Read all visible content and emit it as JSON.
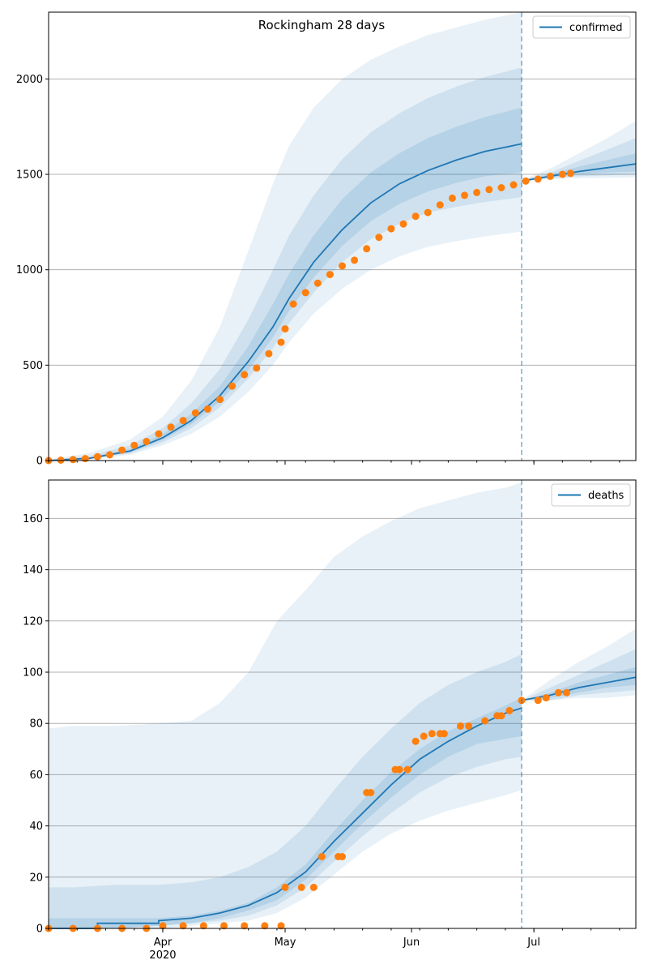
{
  "figure": {
    "title": "Rockingham 28 days"
  },
  "colors": {
    "model_line": "#1f77b4",
    "observed_points": "#ff7f0e",
    "band_fill": "#1f77b4",
    "grid": "#b0b0b0",
    "forecast_line": "#1f77b4"
  },
  "chart_data": [
    {
      "type": "line",
      "name": "confirmed",
      "legend": {
        "label": "confirmed",
        "placement": "top-right"
      },
      "grid": "y-only",
      "ylim": [
        0,
        2350
      ],
      "yticks": [
        0,
        500,
        1000,
        1500,
        2000
      ],
      "xlim": [
        "2020-03-04",
        "2020-07-26"
      ],
      "forecast_start": "2020-06-28",
      "model_median": {
        "x": [
          "2020-03-04",
          "2020-03-14",
          "2020-03-24",
          "2020-04-01",
          "2020-04-08",
          "2020-04-15",
          "2020-04-22",
          "2020-04-28",
          "2020-05-02",
          "2020-05-08",
          "2020-05-15",
          "2020-05-22",
          "2020-05-29",
          "2020-06-05",
          "2020-06-12",
          "2020-06-19",
          "2020-06-28"
        ],
        "y": [
          0,
          12,
          50,
          120,
          210,
          340,
          520,
          700,
          850,
          1040,
          1210,
          1350,
          1450,
          1520,
          1575,
          1620,
          1660
        ]
      },
      "bands": [
        {
          "level": "outer",
          "x": [
            "2020-03-04",
            "2020-03-14",
            "2020-03-24",
            "2020-04-01",
            "2020-04-08",
            "2020-04-15",
            "2020-04-22",
            "2020-04-28",
            "2020-05-02",
            "2020-05-08",
            "2020-05-15",
            "2020-05-22",
            "2020-05-29",
            "2020-06-05",
            "2020-06-12",
            "2020-06-19",
            "2020-06-28"
          ],
          "lower": [
            0,
            5,
            30,
            80,
            140,
            230,
            360,
            500,
            620,
            770,
            900,
            1000,
            1070,
            1120,
            1150,
            1175,
            1200
          ],
          "upper": [
            5,
            40,
            110,
            230,
            420,
            700,
            1100,
            1450,
            1650,
            1850,
            2000,
            2100,
            2170,
            2230,
            2270,
            2310,
            2350
          ]
        },
        {
          "level": "middle",
          "x": [
            "2020-03-04",
            "2020-03-14",
            "2020-03-24",
            "2020-04-01",
            "2020-04-08",
            "2020-04-15",
            "2020-04-22",
            "2020-04-28",
            "2020-05-02",
            "2020-05-08",
            "2020-05-15",
            "2020-05-22",
            "2020-05-29",
            "2020-06-05",
            "2020-06-12",
            "2020-06-19",
            "2020-06-28"
          ],
          "lower": [
            0,
            8,
            38,
            95,
            170,
            280,
            430,
            590,
            720,
            880,
            1040,
            1160,
            1240,
            1300,
            1330,
            1355,
            1380
          ],
          "upper": [
            3,
            25,
            80,
            170,
            300,
            480,
            740,
            1000,
            1180,
            1390,
            1580,
            1720,
            1820,
            1900,
            1960,
            2010,
            2060
          ]
        },
        {
          "level": "inner",
          "x": [
            "2020-03-04",
            "2020-03-14",
            "2020-03-24",
            "2020-04-01",
            "2020-04-08",
            "2020-04-15",
            "2020-04-22",
            "2020-04-28",
            "2020-05-02",
            "2020-05-08",
            "2020-05-15",
            "2020-05-22",
            "2020-05-29",
            "2020-06-05",
            "2020-06-12",
            "2020-06-19",
            "2020-06-28"
          ],
          "lower": [
            0,
            10,
            44,
            108,
            190,
            310,
            475,
            645,
            785,
            960,
            1125,
            1255,
            1345,
            1410,
            1455,
            1490,
            1510
          ],
          "upper": [
            2,
            16,
            62,
            140,
            245,
            390,
            600,
            820,
            980,
            1180,
            1370,
            1510,
            1610,
            1690,
            1750,
            1800,
            1850
          ]
        }
      ],
      "forecast_median": {
        "x": [
          "2020-06-28",
          "2020-07-05",
          "2020-07-12",
          "2020-07-19",
          "2020-07-26"
        ],
        "y": [
          1465,
          1490,
          1515,
          1535,
          1555
        ]
      },
      "forecast_bands": [
        {
          "level": "outer",
          "x": [
            "2020-06-28",
            "2020-07-05",
            "2020-07-12",
            "2020-07-19",
            "2020-07-26"
          ],
          "lower": [
            1465,
            1475,
            1480,
            1482,
            1485
          ],
          "upper": [
            1470,
            1530,
            1610,
            1690,
            1780
          ]
        },
        {
          "level": "middle",
          "x": [
            "2020-06-28",
            "2020-07-05",
            "2020-07-12",
            "2020-07-19",
            "2020-07-26"
          ],
          "lower": [
            1465,
            1480,
            1490,
            1495,
            1500
          ],
          "upper": [
            1468,
            1510,
            1570,
            1630,
            1690
          ]
        },
        {
          "level": "inner",
          "x": [
            "2020-06-28",
            "2020-07-05",
            "2020-07-12",
            "2020-07-19",
            "2020-07-26"
          ],
          "lower": [
            1465,
            1485,
            1500,
            1510,
            1515
          ],
          "upper": [
            1467,
            1500,
            1540,
            1575,
            1610
          ]
        }
      ],
      "observed": {
        "x": [
          "2020-03-04",
          "2020-03-07",
          "2020-03-10",
          "2020-03-13",
          "2020-03-16",
          "2020-03-19",
          "2020-03-22",
          "2020-03-25",
          "2020-03-28",
          "2020-03-31",
          "2020-04-03",
          "2020-04-06",
          "2020-04-09",
          "2020-04-12",
          "2020-04-15",
          "2020-04-18",
          "2020-04-21",
          "2020-04-24",
          "2020-04-27",
          "2020-04-30",
          "2020-05-01",
          "2020-05-03",
          "2020-05-06",
          "2020-05-09",
          "2020-05-12",
          "2020-05-15",
          "2020-05-18",
          "2020-05-21",
          "2020-05-24",
          "2020-05-27",
          "2020-05-30",
          "2020-06-02",
          "2020-06-05",
          "2020-06-08",
          "2020-06-11",
          "2020-06-14",
          "2020-06-17",
          "2020-06-20",
          "2020-06-23",
          "2020-06-26",
          "2020-06-29",
          "2020-07-02",
          "2020-07-05",
          "2020-07-08",
          "2020-07-10"
        ],
        "y": [
          0,
          2,
          5,
          10,
          20,
          30,
          55,
          80,
          100,
          140,
          175,
          210,
          250,
          270,
          320,
          390,
          450,
          485,
          560,
          620,
          690,
          820,
          880,
          930,
          975,
          1020,
          1050,
          1110,
          1170,
          1215,
          1240,
          1280,
          1300,
          1340,
          1375,
          1390,
          1405,
          1420,
          1430,
          1445,
          1465,
          1475,
          1490,
          1500,
          1505
        ]
      }
    },
    {
      "type": "line",
      "name": "deaths",
      "legend": {
        "label": "deaths",
        "placement": "top-right"
      },
      "grid": "y-only",
      "ylim": [
        0,
        175
      ],
      "yticks": [
        0,
        20,
        40,
        60,
        80,
        100,
        120,
        140,
        160
      ],
      "xlim": [
        "2020-03-04",
        "2020-07-26"
      ],
      "xtick_labels": [
        {
          "date": "2020-04-01",
          "label": "Apr",
          "sublabel": "2020"
        },
        {
          "date": "2020-05-01",
          "label": "May",
          "sublabel": ""
        },
        {
          "date": "2020-06-01",
          "label": "Jun",
          "sublabel": ""
        },
        {
          "date": "2020-07-01",
          "label": "Jul",
          "sublabel": ""
        }
      ],
      "forecast_start": "2020-06-28",
      "model_median": {
        "x": [
          "2020-03-04",
          "2020-03-16",
          "2020-03-16",
          "2020-03-31",
          "2020-03-31",
          "2020-04-08",
          "2020-04-15",
          "2020-04-22",
          "2020-04-29",
          "2020-05-06",
          "2020-05-13",
          "2020-05-20",
          "2020-05-27",
          "2020-06-03",
          "2020-06-10",
          "2020-06-17",
          "2020-06-24",
          "2020-06-28"
        ],
        "y": [
          0,
          0,
          2,
          2,
          3,
          4,
          6,
          9,
          14,
          22,
          34,
          45,
          56,
          66,
          73,
          79,
          84,
          86
        ]
      },
      "bands": [
        {
          "level": "outer",
          "x": [
            "2020-03-04",
            "2020-03-10",
            "2020-03-20",
            "2020-03-31",
            "2020-04-08",
            "2020-04-15",
            "2020-04-22",
            "2020-04-29",
            "2020-05-06",
            "2020-05-13",
            "2020-05-20",
            "2020-05-27",
            "2020-06-03",
            "2020-06-10",
            "2020-06-17",
            "2020-06-24",
            "2020-06-28"
          ],
          "lower": [
            0,
            0,
            0,
            0,
            1,
            2,
            3,
            6,
            12,
            21,
            30,
            37,
            42,
            46,
            49,
            52,
            54
          ],
          "upper": [
            78,
            79,
            79,
            80,
            81,
            88,
            100,
            120,
            132,
            145,
            153,
            159,
            164,
            167,
            170,
            172,
            174
          ]
        },
        {
          "level": "middle",
          "x": [
            "2020-03-04",
            "2020-03-10",
            "2020-03-20",
            "2020-03-31",
            "2020-04-08",
            "2020-04-15",
            "2020-04-22",
            "2020-04-29",
            "2020-05-06",
            "2020-05-13",
            "2020-05-20",
            "2020-05-27",
            "2020-06-03",
            "2020-06-10",
            "2020-06-17",
            "2020-06-24",
            "2020-06-28"
          ],
          "lower": [
            0,
            0,
            0,
            1,
            2,
            3,
            5,
            9,
            16,
            26,
            36,
            45,
            53,
            59,
            63,
            66,
            67
          ],
          "upper": [
            16,
            16,
            17,
            17,
            18,
            20,
            24,
            30,
            40,
            54,
            67,
            78,
            88,
            95,
            100,
            104,
            107
          ]
        },
        {
          "level": "inner",
          "x": [
            "2020-03-04",
            "2020-03-10",
            "2020-03-20",
            "2020-03-31",
            "2020-04-08",
            "2020-04-15",
            "2020-04-22",
            "2020-04-29",
            "2020-05-06",
            "2020-05-13",
            "2020-05-20",
            "2020-05-27",
            "2020-06-03",
            "2020-06-10",
            "2020-06-17",
            "2020-06-24",
            "2020-06-28"
          ],
          "lower": [
            0,
            0,
            0,
            1,
            2,
            4,
            7,
            11,
            19,
            30,
            41,
            51,
            60,
            67,
            72,
            74,
            75
          ],
          "upper": [
            4,
            4,
            4,
            4,
            5,
            7,
            10,
            16,
            25,
            38,
            50,
            61,
            70,
            77,
            82,
            87,
            90
          ]
        }
      ],
      "forecast_median": {
        "x": [
          "2020-06-28",
          "2020-07-05",
          "2020-07-12",
          "2020-07-19",
          "2020-07-26"
        ],
        "y": [
          89,
          91,
          94,
          96,
          98
        ]
      },
      "forecast_bands": [
        {
          "level": "outer",
          "x": [
            "2020-06-28",
            "2020-07-05",
            "2020-07-12",
            "2020-07-19",
            "2020-07-26"
          ],
          "lower": [
            89,
            89,
            90,
            90,
            91
          ],
          "upper": [
            89,
            97,
            104,
            110,
            117
          ]
        },
        {
          "level": "middle",
          "x": [
            "2020-06-28",
            "2020-07-05",
            "2020-07-12",
            "2020-07-19",
            "2020-07-26"
          ],
          "lower": [
            89,
            89,
            91,
            92,
            93
          ],
          "upper": [
            89,
            94,
            99,
            104,
            109
          ]
        },
        {
          "level": "inner",
          "x": [
            "2020-06-28",
            "2020-07-05",
            "2020-07-12",
            "2020-07-19",
            "2020-07-26"
          ],
          "lower": [
            89,
            90,
            92,
            94,
            95
          ],
          "upper": [
            89,
            92,
            96,
            99,
            102
          ]
        }
      ],
      "observed": {
        "x": [
          "2020-03-04",
          "2020-03-10",
          "2020-03-16",
          "2020-03-22",
          "2020-03-28",
          "2020-04-01",
          "2020-04-06",
          "2020-04-11",
          "2020-04-16",
          "2020-04-21",
          "2020-04-26",
          "2020-04-30",
          "2020-05-01",
          "2020-05-05",
          "2020-05-08",
          "2020-05-10",
          "2020-05-14",
          "2020-05-15",
          "2020-05-21",
          "2020-05-22",
          "2020-05-28",
          "2020-05-29",
          "2020-05-31",
          "2020-06-02",
          "2020-06-04",
          "2020-06-06",
          "2020-06-08",
          "2020-06-09",
          "2020-06-13",
          "2020-06-15",
          "2020-06-19",
          "2020-06-22",
          "2020-06-23",
          "2020-06-25",
          "2020-06-28",
          "2020-07-02",
          "2020-07-04",
          "2020-07-07",
          "2020-07-09"
        ],
        "y": [
          0,
          0,
          0,
          0,
          0,
          1,
          1,
          1,
          1,
          1,
          1,
          1,
          16,
          16,
          16,
          28,
          28,
          28,
          53,
          53,
          62,
          62,
          62,
          73,
          75,
          76,
          76,
          76,
          79,
          79,
          81,
          83,
          83,
          85,
          89,
          89,
          90,
          92,
          92
        ]
      }
    }
  ]
}
